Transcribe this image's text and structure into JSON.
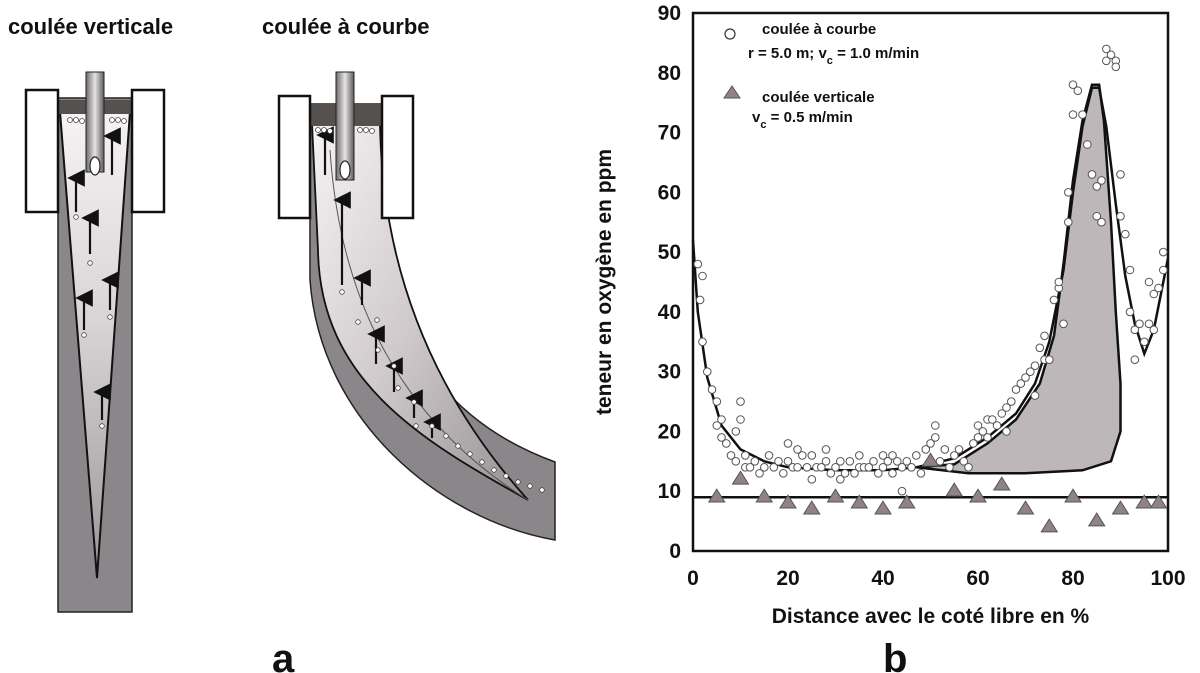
{
  "panel_a": {
    "title_vertical": "coulée verticale",
    "title_curved": "coulée à courbe",
    "letter": "a"
  },
  "panel_b": {
    "letter": "b"
  },
  "colors": {
    "mold_fill": "#8a8689",
    "shell_fill": "#7c787b",
    "liquid_light": "#f4f1f2",
    "fill_region": "#bdb7b9",
    "triangle": "#8f8388",
    "ink": "#111111"
  },
  "chart_data": {
    "type": "scatter",
    "title": "",
    "xlabel": "Distance avec le coté libre en %",
    "ylabel": "teneur en oxygène en ppm",
    "xlim": [
      0,
      100
    ],
    "ylim": [
      0,
      90
    ],
    "x_ticks": [
      "0",
      "20",
      "40",
      "60",
      "80",
      "100"
    ],
    "y_ticks": [
      "0",
      "10",
      "20",
      "30",
      "40",
      "50",
      "60",
      "70",
      "80",
      "90"
    ],
    "legend_position": "top-left",
    "series": [
      {
        "name": "coulée à courbe",
        "name_line2_prefix": "r = 5.0 m; v",
        "name_line2_sub": "c",
        "name_line2_suffix": " = 1.0 m/min",
        "marker": "open-circle",
        "points": [
          [
            1,
            48
          ],
          [
            2,
            46
          ],
          [
            1.5,
            42
          ],
          [
            2,
            35
          ],
          [
            3,
            30
          ],
          [
            4,
            27
          ],
          [
            5,
            25
          ],
          [
            5,
            21
          ],
          [
            6,
            19
          ],
          [
            6,
            22
          ],
          [
            7,
            18
          ],
          [
            8,
            16
          ],
          [
            9,
            15
          ],
          [
            9,
            20
          ],
          [
            10,
            25
          ],
          [
            10,
            22
          ],
          [
            11,
            16
          ],
          [
            11,
            14
          ],
          [
            12,
            14
          ],
          [
            13,
            15
          ],
          [
            14,
            13
          ],
          [
            15,
            14
          ],
          [
            16,
            16
          ],
          [
            17,
            14
          ],
          [
            18,
            15
          ],
          [
            19,
            13
          ],
          [
            20,
            15
          ],
          [
            20,
            18
          ],
          [
            21,
            14
          ],
          [
            22,
            14
          ],
          [
            22,
            17
          ],
          [
            23,
            16
          ],
          [
            24,
            14
          ],
          [
            25,
            12
          ],
          [
            25,
            16
          ],
          [
            26,
            14
          ],
          [
            27,
            14
          ],
          [
            28,
            15
          ],
          [
            28,
            17
          ],
          [
            29,
            13
          ],
          [
            30,
            14
          ],
          [
            31,
            12
          ],
          [
            31,
            15
          ],
          [
            32,
            13
          ],
          [
            33,
            15
          ],
          [
            34,
            13
          ],
          [
            35,
            14
          ],
          [
            35,
            16
          ],
          [
            36,
            14
          ],
          [
            37,
            14
          ],
          [
            38,
            15
          ],
          [
            39,
            13
          ],
          [
            40,
            14
          ],
          [
            40,
            16
          ],
          [
            41,
            15
          ],
          [
            42,
            13
          ],
          [
            42,
            16
          ],
          [
            43,
            15
          ],
          [
            44,
            14
          ],
          [
            44,
            10
          ],
          [
            45,
            15
          ],
          [
            46,
            14
          ],
          [
            47,
            16
          ],
          [
            48,
            13
          ],
          [
            49,
            17
          ],
          [
            50,
            18
          ],
          [
            51,
            19
          ],
          [
            51,
            21
          ],
          [
            52,
            15
          ],
          [
            53,
            17
          ],
          [
            54,
            14
          ],
          [
            55,
            16
          ],
          [
            56,
            17
          ],
          [
            57,
            15
          ],
          [
            58,
            14
          ],
          [
            59,
            18
          ],
          [
            60,
            19
          ],
          [
            60,
            21
          ],
          [
            61,
            20
          ],
          [
            62,
            19
          ],
          [
            62,
            22
          ],
          [
            63,
            22
          ],
          [
            64,
            21
          ],
          [
            65,
            23
          ],
          [
            66,
            24
          ],
          [
            66,
            20
          ],
          [
            67,
            25
          ],
          [
            68,
            27
          ],
          [
            69,
            28
          ],
          [
            70,
            29
          ],
          [
            71,
            30
          ],
          [
            72,
            31
          ],
          [
            72,
            26
          ],
          [
            73,
            34
          ],
          [
            74,
            32
          ],
          [
            75,
            32
          ],
          [
            74,
            36
          ],
          [
            76,
            42
          ],
          [
            77,
            44
          ],
          [
            77,
            45
          ],
          [
            78,
            38
          ],
          [
            79,
            55
          ],
          [
            79,
            60
          ],
          [
            80,
            73
          ],
          [
            80,
            78
          ],
          [
            81,
            77
          ],
          [
            82,
            73
          ],
          [
            83,
            68
          ],
          [
            84,
            63
          ],
          [
            85,
            61
          ],
          [
            85,
            56
          ],
          [
            86,
            62
          ],
          [
            86,
            55
          ],
          [
            87,
            82
          ],
          [
            87,
            84
          ],
          [
            88,
            83
          ],
          [
            89,
            82
          ],
          [
            89,
            81
          ],
          [
            90,
            63
          ],
          [
            90,
            56
          ],
          [
            91,
            53
          ],
          [
            92,
            47
          ],
          [
            92,
            40
          ],
          [
            93,
            37
          ],
          [
            93,
            32
          ],
          [
            94,
            38
          ],
          [
            95,
            35
          ],
          [
            96,
            45
          ],
          [
            96,
            38
          ],
          [
            97,
            43
          ],
          [
            97,
            37
          ],
          [
            98,
            44
          ],
          [
            99,
            50
          ],
          [
            99,
            47
          ]
        ]
      },
      {
        "name": "coulée verticale",
        "name_line2_prefix": "v",
        "name_line2_sub": "c",
        "name_line2_suffix": " = 0.5 m/min",
        "marker": "filled-triangle",
        "points": [
          [
            5,
            9
          ],
          [
            10,
            12
          ],
          [
            15,
            9
          ],
          [
            20,
            8
          ],
          [
            25,
            7
          ],
          [
            30,
            9
          ],
          [
            35,
            8
          ],
          [
            40,
            7
          ],
          [
            45,
            8
          ],
          [
            50,
            15
          ],
          [
            55,
            10
          ],
          [
            60,
            9
          ],
          [
            65,
            11
          ],
          [
            70,
            7
          ],
          [
            75,
            4
          ],
          [
            80,
            9
          ],
          [
            85,
            5
          ],
          [
            90,
            7
          ],
          [
            95,
            8
          ],
          [
            98,
            8
          ]
        ]
      }
    ]
  }
}
